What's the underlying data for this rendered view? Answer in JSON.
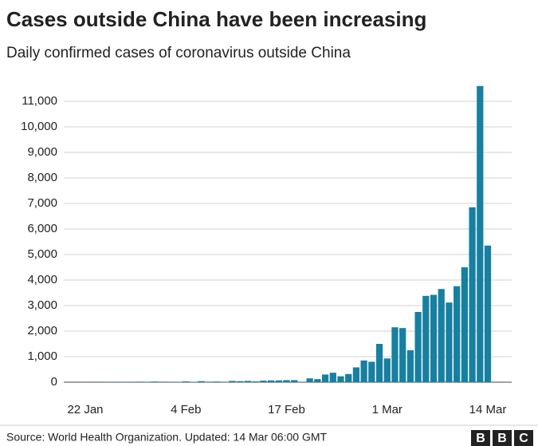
{
  "chart_data": {
    "type": "bar",
    "title": "Cases outside China have been increasing",
    "subtitle": "Daily confirmed cases of coronavirus outside China",
    "source": "Source: World Health Organization. Updated: 14 Mar 06:00 GMT",
    "logo": [
      "B",
      "B",
      "C"
    ],
    "color": "#1780a1",
    "grid": true,
    "categories": [
      "22 Jan",
      null,
      null,
      null,
      null,
      null,
      null,
      null,
      null,
      null,
      null,
      null,
      null,
      "4 Feb",
      null,
      null,
      null,
      null,
      null,
      null,
      null,
      null,
      null,
      null,
      null,
      null,
      "17 Feb",
      null,
      null,
      null,
      null,
      null,
      null,
      null,
      null,
      null,
      null,
      null,
      null,
      "1 Mar",
      null,
      null,
      null,
      null,
      null,
      null,
      null,
      null,
      null,
      null,
      null,
      null,
      "14 Mar"
    ],
    "values": [
      5,
      2,
      5,
      10,
      10,
      15,
      10,
      20,
      15,
      25,
      20,
      10,
      15,
      30,
      15,
      40,
      20,
      25,
      10,
      50,
      40,
      50,
      30,
      60,
      70,
      70,
      80,
      80,
      10,
      150,
      120,
      300,
      370,
      230,
      320,
      580,
      850,
      800,
      1500,
      930,
      2150,
      2120,
      1250,
      2750,
      3380,
      3420,
      3650,
      3120,
      3760,
      4500,
      6850,
      11600,
      5350
    ],
    "ylim": [
      0,
      12000
    ],
    "yticks": [
      0,
      {
        "value": 1000,
        "label": "1,000"
      },
      {
        "value": 2000,
        "label": "2,000"
      },
      {
        "value": 3000,
        "label": "3,000"
      },
      {
        "value": 4000,
        "label": "4,000"
      },
      {
        "value": 5000,
        "label": "5,000"
      },
      {
        "value": 6000,
        "label": "6,000"
      },
      {
        "value": 7000,
        "label": "7,000"
      },
      {
        "value": 8000,
        "label": "8,000"
      },
      {
        "value": 9000,
        "label": "9,000"
      },
      {
        "value": 10000,
        "label": "10,000"
      },
      {
        "value": 11000,
        "label": "11,000"
      }
    ]
  }
}
